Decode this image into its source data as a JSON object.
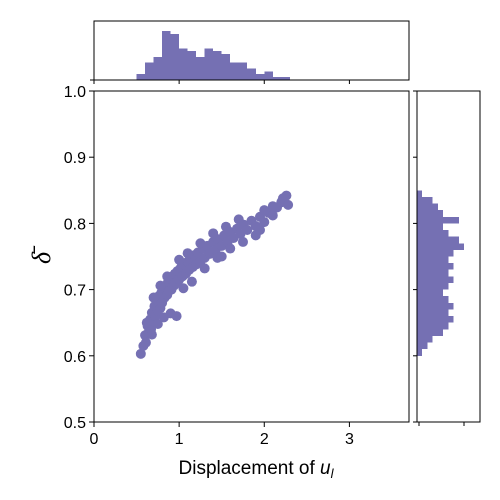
{
  "colors": {
    "series": "#7570b3"
  },
  "chart_data": {
    "type": "scatter",
    "xlabel_text": "Displacement of ",
    "xlabel_var": "u",
    "xlabel_sub": "l",
    "ylabel": "δ̄",
    "xlim": [
      0,
      3.7
    ],
    "ylim": [
      0.5,
      1.0
    ],
    "x_ticks": [
      0,
      1,
      2,
      3
    ],
    "x_tick_labels": [
      "0",
      "1",
      "2",
      "3"
    ],
    "y_ticks": [
      0.5,
      0.6,
      0.7,
      0.8,
      0.9,
      1.0
    ],
    "y_tick_labels": [
      "0.5",
      "0.6",
      "0.7",
      "0.8",
      "0.9",
      "1.0"
    ],
    "grid": false,
    "legend": "none",
    "points": [
      {
        "x": 0.55,
        "y": 0.603
      },
      {
        "x": 0.58,
        "y": 0.615
      },
      {
        "x": 0.6,
        "y": 0.631
      },
      {
        "x": 0.61,
        "y": 0.62
      },
      {
        "x": 0.63,
        "y": 0.645
      },
      {
        "x": 0.64,
        "y": 0.635
      },
      {
        "x": 0.66,
        "y": 0.655
      },
      {
        "x": 0.67,
        "y": 0.64
      },
      {
        "x": 0.68,
        "y": 0.665
      },
      {
        "x": 0.7,
        "y": 0.652
      },
      {
        "x": 0.71,
        "y": 0.675
      },
      {
        "x": 0.72,
        "y": 0.66
      },
      {
        "x": 0.74,
        "y": 0.684
      },
      {
        "x": 0.75,
        "y": 0.668
      },
      {
        "x": 0.76,
        "y": 0.69
      },
      {
        "x": 0.78,
        "y": 0.672
      },
      {
        "x": 0.79,
        "y": 0.695
      },
      {
        "x": 0.8,
        "y": 0.68
      },
      {
        "x": 0.82,
        "y": 0.702
      },
      {
        "x": 0.83,
        "y": 0.688
      },
      {
        "x": 0.84,
        "y": 0.706
      },
      {
        "x": 0.86,
        "y": 0.692
      },
      {
        "x": 0.87,
        "y": 0.712
      },
      {
        "x": 0.88,
        "y": 0.698
      },
      {
        "x": 0.9,
        "y": 0.716
      },
      {
        "x": 0.91,
        "y": 0.7
      },
      {
        "x": 0.92,
        "y": 0.72
      },
      {
        "x": 0.94,
        "y": 0.706
      },
      {
        "x": 0.95,
        "y": 0.724
      },
      {
        "x": 0.96,
        "y": 0.71
      },
      {
        "x": 0.98,
        "y": 0.728
      },
      {
        "x": 1.0,
        "y": 0.715
      },
      {
        "x": 1.02,
        "y": 0.733
      },
      {
        "x": 1.04,
        "y": 0.72
      },
      {
        "x": 1.06,
        "y": 0.738
      },
      {
        "x": 1.08,
        "y": 0.724
      },
      {
        "x": 1.1,
        "y": 0.742
      },
      {
        "x": 1.12,
        "y": 0.73
      },
      {
        "x": 1.14,
        "y": 0.747
      },
      {
        "x": 1.16,
        "y": 0.734
      },
      {
        "x": 1.18,
        "y": 0.752
      },
      {
        "x": 1.2,
        "y": 0.738
      },
      {
        "x": 1.22,
        "y": 0.756
      },
      {
        "x": 1.25,
        "y": 0.742
      },
      {
        "x": 1.28,
        "y": 0.762
      },
      {
        "x": 1.3,
        "y": 0.748
      },
      {
        "x": 1.33,
        "y": 0.766
      },
      {
        "x": 1.36,
        "y": 0.754
      },
      {
        "x": 1.4,
        "y": 0.772
      },
      {
        "x": 1.43,
        "y": 0.76
      },
      {
        "x": 1.46,
        "y": 0.776
      },
      {
        "x": 1.5,
        "y": 0.766
      },
      {
        "x": 1.53,
        "y": 0.782
      },
      {
        "x": 1.57,
        "y": 0.772
      },
      {
        "x": 1.6,
        "y": 0.787
      },
      {
        "x": 1.64,
        "y": 0.778
      },
      {
        "x": 1.68,
        "y": 0.792
      },
      {
        "x": 1.72,
        "y": 0.784
      },
      {
        "x": 1.76,
        "y": 0.798
      },
      {
        "x": 1.8,
        "y": 0.79
      },
      {
        "x": 1.85,
        "y": 0.804
      },
      {
        "x": 1.9,
        "y": 0.796
      },
      {
        "x": 1.95,
        "y": 0.81
      },
      {
        "x": 2.0,
        "y": 0.802
      },
      {
        "x": 2.05,
        "y": 0.816
      },
      {
        "x": 2.1,
        "y": 0.812
      },
      {
        "x": 2.15,
        "y": 0.824
      },
      {
        "x": 2.2,
        "y": 0.832
      },
      {
        "x": 2.22,
        "y": 0.838
      },
      {
        "x": 2.26,
        "y": 0.842
      },
      {
        "x": 2.28,
        "y": 0.828
      },
      {
        "x": 0.68,
        "y": 0.632
      },
      {
        "x": 0.75,
        "y": 0.648
      },
      {
        "x": 0.82,
        "y": 0.658
      },
      {
        "x": 0.9,
        "y": 0.664
      },
      {
        "x": 1.05,
        "y": 0.702
      },
      {
        "x": 1.15,
        "y": 0.712
      },
      {
        "x": 1.3,
        "y": 0.732
      },
      {
        "x": 1.45,
        "y": 0.748
      },
      {
        "x": 1.6,
        "y": 0.762
      },
      {
        "x": 1.75,
        "y": 0.772
      },
      {
        "x": 1.9,
        "y": 0.782
      },
      {
        "x": 1.95,
        "y": 0.79
      },
      {
        "x": 0.62,
        "y": 0.65
      },
      {
        "x": 0.7,
        "y": 0.688
      },
      {
        "x": 0.78,
        "y": 0.706
      },
      {
        "x": 0.86,
        "y": 0.72
      },
      {
        "x": 1.0,
        "y": 0.745
      },
      {
        "x": 1.1,
        "y": 0.755
      },
      {
        "x": 1.25,
        "y": 0.77
      },
      {
        "x": 1.4,
        "y": 0.785
      },
      {
        "x": 1.55,
        "y": 0.795
      },
      {
        "x": 1.7,
        "y": 0.806
      },
      {
        "x": 0.97,
        "y": 0.66
      },
      {
        "x": 1.5,
        "y": 0.75
      },
      {
        "x": 2.0,
        "y": 0.82
      },
      {
        "x": 2.1,
        "y": 0.826
      }
    ],
    "top_histogram": {
      "bin_edges": [
        0.5,
        0.6,
        0.7,
        0.8,
        0.9,
        1.0,
        1.1,
        1.2,
        1.3,
        1.4,
        1.5,
        1.6,
        1.7,
        1.8,
        1.9,
        2.0,
        2.1,
        2.2,
        2.3
      ],
      "counts": [
        2,
        6,
        8,
        17,
        16,
        11,
        10,
        8,
        11,
        10,
        9,
        6,
        6,
        4,
        2,
        3,
        1,
        1
      ]
    },
    "right_histogram": {
      "bin_edges": [
        0.6,
        0.61,
        0.62,
        0.63,
        0.64,
        0.65,
        0.66,
        0.67,
        0.68,
        0.69,
        0.7,
        0.71,
        0.72,
        0.73,
        0.74,
        0.75,
        0.76,
        0.77,
        0.78,
        0.79,
        0.8,
        0.81,
        0.82,
        0.83,
        0.84,
        0.85
      ],
      "counts": [
        1,
        2,
        3,
        5,
        6,
        7,
        6,
        7,
        6,
        5,
        6,
        7,
        6,
        7,
        6,
        7,
        9,
        8,
        6,
        5,
        8,
        5,
        4,
        3,
        1
      ]
    }
  }
}
